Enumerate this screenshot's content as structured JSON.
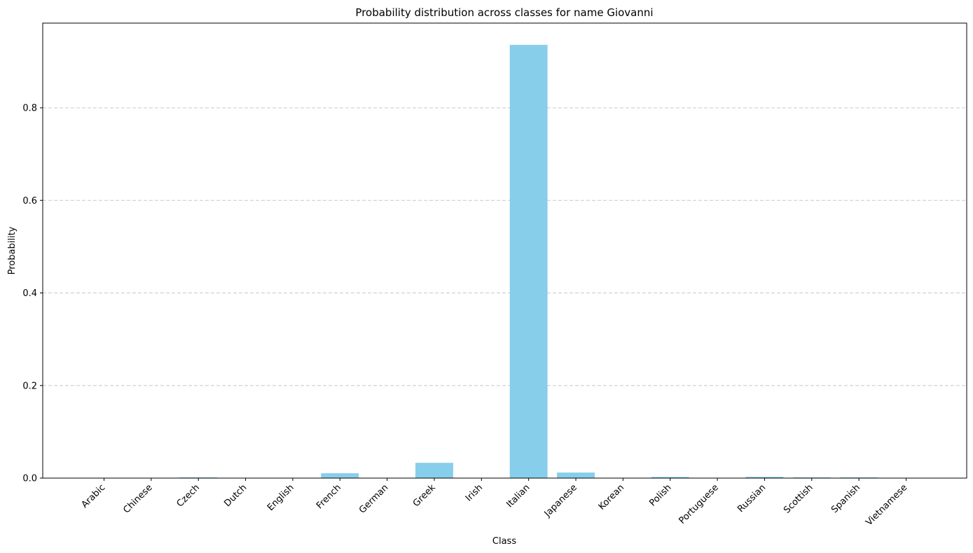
{
  "chart_data": {
    "type": "bar",
    "title": "Probability distribution across classes for name Giovanni",
    "xlabel": "Class",
    "ylabel": "Probability",
    "categories": [
      "Arabic",
      "Chinese",
      "Czech",
      "Dutch",
      "English",
      "French",
      "German",
      "Greek",
      "Irish",
      "Italian",
      "Japanese",
      "Korean",
      "Polish",
      "Portuguese",
      "Russian",
      "Scottish",
      "Spanish",
      "Vietnamese"
    ],
    "values": [
      0.0003,
      0.0002,
      0.0015,
      0.0004,
      0.0006,
      0.0105,
      0.0008,
      0.033,
      0.0005,
      0.936,
      0.012,
      0.0003,
      0.0025,
      0.0008,
      0.0028,
      0.0015,
      0.0015,
      0.0003
    ],
    "ylim": [
      0,
      0.983
    ],
    "yticks": [
      0.0,
      0.2,
      0.4,
      0.6,
      0.8
    ],
    "ytick_labels": [
      "0.0",
      "0.2",
      "0.4",
      "0.6",
      "0.8"
    ],
    "grid": "y-dashed",
    "bar_color": "#87ceeb",
    "grid_color": "#c8c8c8"
  }
}
